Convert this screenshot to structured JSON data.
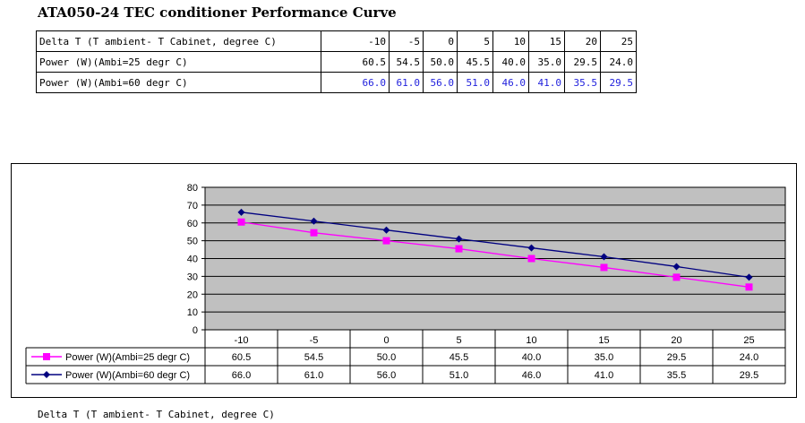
{
  "header": {
    "title": "ATA050-24  TEC conditioner Performance Curve"
  },
  "table": {
    "rows": [
      {
        "label": "Delta T (T ambient- T Cabinet, degree C)",
        "values": [
          "-10",
          "-5",
          "0",
          "5",
          "10",
          "15",
          "20",
          "25"
        ]
      },
      {
        "label": "Power (W)(Ambi=25 degr C)",
        "values": [
          "60.5",
          "54.5",
          "50.0",
          "45.5",
          "40.0",
          "35.0",
          "29.5",
          "24.0"
        ]
      },
      {
        "label": "Power (W)(Ambi=60 degr C)",
        "values": [
          "66.0",
          "61.0",
          "56.0",
          "51.0",
          "46.0",
          "41.0",
          "35.5",
          "29.5"
        ]
      }
    ]
  },
  "chart_data": {
    "type": "line",
    "title": "",
    "xlabel": "Delta T (T ambient- T Cabinet, degree C)",
    "ylabel": "",
    "categories": [
      "-10",
      "-5",
      "0",
      "5",
      "10",
      "15",
      "20",
      "25"
    ],
    "ylim": [
      0,
      80
    ],
    "yticks": [
      "0",
      "10",
      "20",
      "30",
      "40",
      "50",
      "60",
      "70",
      "80"
    ],
    "grid": true,
    "plot_background": "#c0c0c0",
    "legend": "data-table",
    "series": [
      {
        "name": "Power (W)(Ambi=25 degr C)",
        "values": [
          60.5,
          54.5,
          50.0,
          45.5,
          40.0,
          35.0,
          29.5,
          24.0
        ],
        "labels": [
          "60.5",
          "54.5",
          "50.0",
          "45.5",
          "40.0",
          "35.0",
          "29.5",
          "24.0"
        ],
        "color": "#ff00ff",
        "marker": "square"
      },
      {
        "name": "Power (W)(Ambi=60 degr C)",
        "values": [
          66.0,
          61.0,
          56.0,
          51.0,
          46.0,
          41.0,
          35.5,
          29.5
        ],
        "labels": [
          "66.0",
          "61.0",
          "56.0",
          "51.0",
          "46.0",
          "41.0",
          "35.5",
          "29.5"
        ],
        "color": "#000080",
        "marker": "diamond"
      }
    ]
  }
}
